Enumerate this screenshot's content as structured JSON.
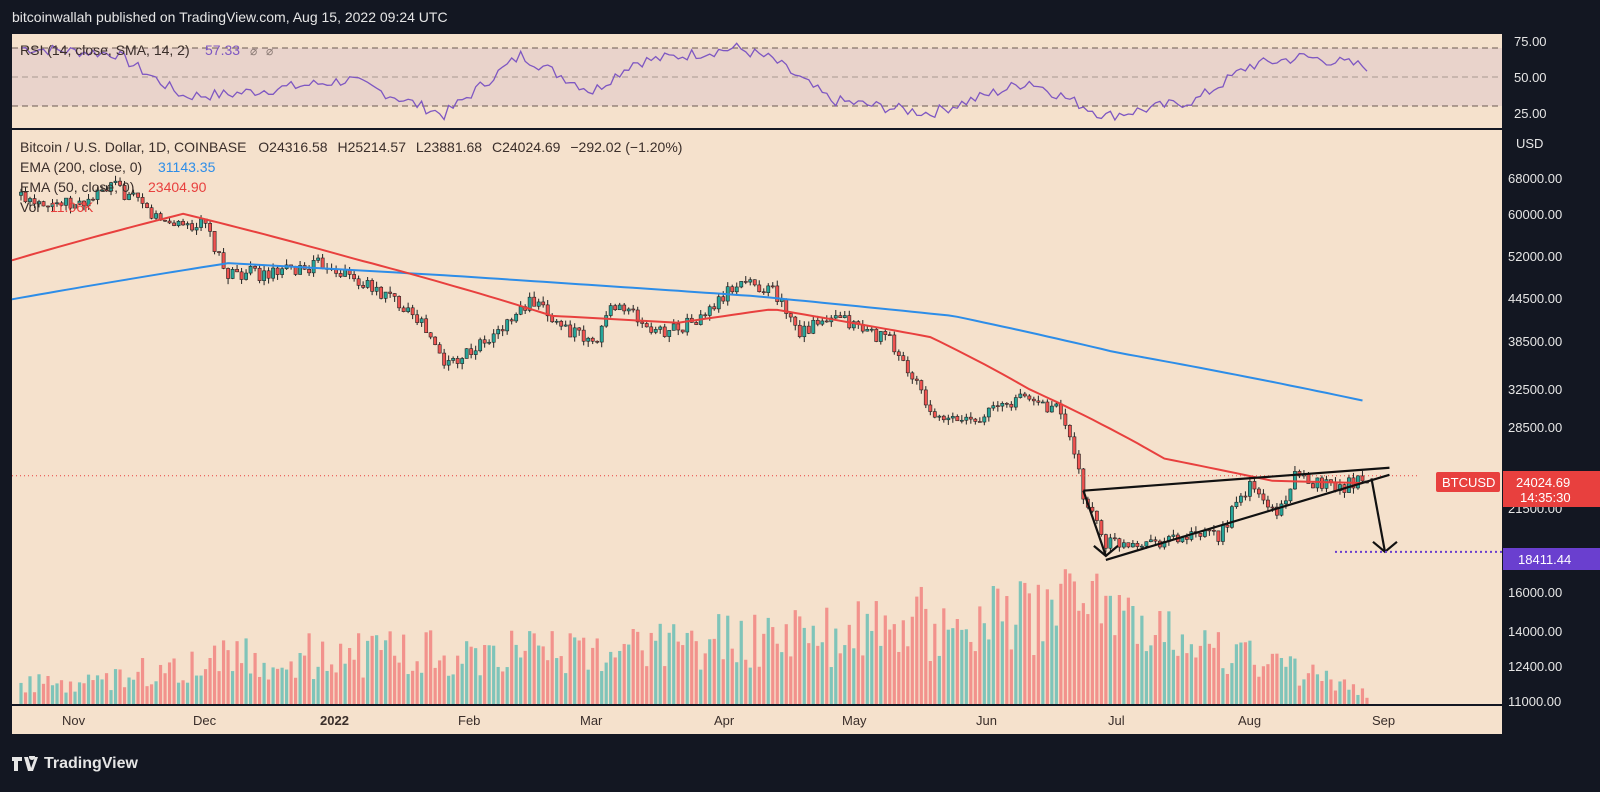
{
  "header": {
    "published": "bitcoinwallah published on TradingView.com, Aug 15, 2022 09:24 UTC"
  },
  "footer": {
    "brand": "TradingView"
  },
  "colors": {
    "background": "#f5e1cc",
    "frame": "#131722",
    "up": "#26a69a",
    "down": "#ef5350",
    "ema200": "#2d8de8",
    "ema50": "#e8403e",
    "rsi": "#7e57c2",
    "target": "#6a3fcf",
    "last_price": "#e8403e"
  },
  "rsi_panel": {
    "legend_name": "RSI (14, close, SMA, 14, 2)",
    "legend_value": "57.33",
    "legend_icons": [
      "eye-off-icon",
      "eye-off-icon"
    ],
    "y_ticks": [
      "75.00",
      "50.00",
      "25.00"
    ]
  },
  "price_panel": {
    "symbol_line": {
      "name": "Bitcoin / U.S. Dollar, 1D, COINBASE",
      "open": "O24316.58",
      "high": "H25214.57",
      "low": "L23881.68",
      "close": "C24024.69",
      "change": "−292.02 (−1.20%)"
    },
    "ema200_label": "EMA (200, close, 0)",
    "ema200_value": "31143.35",
    "ema50_label": "EMA (50, close, 0)",
    "ema50_value": "23404.90",
    "volume_label": "Vol",
    "volume_value": "11.06K",
    "currency": "USD",
    "y_ticks": [
      "68000.00",
      "60000.00",
      "52000.00",
      "44500.00",
      "38500.00",
      "32500.00",
      "28500.00",
      "21500.00",
      "16000.00",
      "14000.00",
      "12400.00",
      "11000.00"
    ],
    "symbol_tag": "BTCUSD",
    "last_price": "24024.69",
    "countdown": "14:35:30",
    "target_price": "18411.44"
  },
  "x_axis": {
    "labels": [
      "Nov",
      "Dec",
      "2022",
      "Feb",
      "Mar",
      "Apr",
      "May",
      "Jun",
      "Jul",
      "Aug",
      "Sep"
    ]
  },
  "chart_data": {
    "type": "candlestick",
    "symbol": "BTCUSD",
    "timeframe": "1D",
    "exchange": "COINBASE",
    "x_range": [
      "2021-10-18",
      "2022-09-14"
    ],
    "y_scale": "log",
    "ohlc_summary": {
      "open": 24316.58,
      "high": 25214.57,
      "low": 23881.68,
      "close": 24024.69,
      "change": -292.02,
      "change_pct": -1.2
    },
    "close_trend": [
      [
        "2021-10-20",
        64000
      ],
      [
        "2021-11-01",
        61500
      ],
      [
        "2021-11-10",
        66000
      ],
      [
        "2021-11-20",
        58500
      ],
      [
        "2021-11-30",
        57500
      ],
      [
        "2021-12-04",
        49000
      ],
      [
        "2021-12-15",
        48500
      ],
      [
        "2021-12-27",
        50500
      ],
      [
        "2022-01-05",
        46500
      ],
      [
        "2022-01-15",
        43000
      ],
      [
        "2022-01-22",
        35500
      ],
      [
        "2022-02-01",
        38500
      ],
      [
        "2022-02-10",
        44000
      ],
      [
        "2022-02-20",
        39500
      ],
      [
        "2022-02-24",
        38000
      ],
      [
        "2022-03-01",
        44000
      ],
      [
        "2022-03-10",
        39500
      ],
      [
        "2022-03-20",
        41500
      ],
      [
        "2022-03-29",
        47500
      ],
      [
        "2022-04-05",
        46000
      ],
      [
        "2022-04-11",
        40000
      ],
      [
        "2022-04-20",
        41500
      ],
      [
        "2022-05-01",
        38500
      ],
      [
        "2022-05-09",
        31000
      ],
      [
        "2022-05-12",
        29000
      ],
      [
        "2022-05-20",
        29500
      ],
      [
        "2022-05-31",
        31700
      ],
      [
        "2022-06-08",
        30200
      ],
      [
        "2022-06-13",
        22500
      ],
      [
        "2022-06-18",
        19000
      ],
      [
        "2022-06-30",
        19200
      ],
      [
        "2022-07-13",
        19500
      ],
      [
        "2022-07-20",
        23200
      ],
      [
        "2022-07-26",
        21000
      ],
      [
        "2022-07-30",
        23800
      ],
      [
        "2022-08-10",
        23200
      ],
      [
        "2022-08-15",
        24024.69
      ]
    ],
    "ema200": [
      [
        "2021-10-18",
        44500
      ],
      [
        "2021-12-05",
        50500
      ],
      [
        "2022-01-20",
        48500
      ],
      [
        "2022-04-01",
        45000
      ],
      [
        "2022-05-15",
        42000
      ],
      [
        "2022-06-20",
        37000
      ],
      [
        "2022-08-15",
        31143.35
      ]
    ],
    "ema50": [
      [
        "2021-10-18",
        51000
      ],
      [
        "2021-11-25",
        60000
      ],
      [
        "2022-01-01",
        51500
      ],
      [
        "2022-02-15",
        42000
      ],
      [
        "2022-03-15",
        41000
      ],
      [
        "2022-04-05",
        43000
      ],
      [
        "2022-05-10",
        39000
      ],
      [
        "2022-06-01",
        32500
      ],
      [
        "2022-07-01",
        25500
      ],
      [
        "2022-07-25",
        23600
      ],
      [
        "2022-08-15",
        23404.9
      ]
    ],
    "rsi": [
      [
        "2021-10-20",
        70
      ],
      [
        "2021-11-10",
        66
      ],
      [
        "2021-11-25",
        37
      ],
      [
        "2021-12-05",
        38
      ],
      [
        "2022-01-01",
        48
      ],
      [
        "2022-01-22",
        24
      ],
      [
        "2022-02-08",
        65
      ],
      [
        "2022-02-24",
        40
      ],
      [
        "2022-03-05",
        60
      ],
      [
        "2022-03-28",
        70
      ],
      [
        "2022-04-05",
        62
      ],
      [
        "2022-04-18",
        34
      ],
      [
        "2022-05-10",
        25
      ],
      [
        "2022-06-01",
        47
      ],
      [
        "2022-06-18",
        23
      ],
      [
        "2022-07-08",
        34
      ],
      [
        "2022-07-20",
        58
      ],
      [
        "2022-08-01",
        64
      ],
      [
        "2022-08-15",
        57.33
      ]
    ],
    "rsi_bands": [
      30,
      50,
      70
    ],
    "volume_trend": [
      [
        "2021-11-01",
        11800
      ],
      [
        "2021-12-04",
        13800
      ],
      [
        "2022-01-22",
        14200
      ],
      [
        "2022-02-28",
        14200
      ],
      [
        "2022-05-10",
        16500
      ],
      [
        "2022-06-13",
        17500
      ],
      [
        "2022-08-15",
        11060
      ]
    ],
    "rising_wedge": {
      "upper": [
        [
          "2022-06-13",
          22800
        ],
        [
          "2022-08-20",
          24700
        ]
      ],
      "lower": [
        [
          "2022-06-18",
          17900
        ],
        [
          "2022-08-20",
          24100
        ]
      ]
    },
    "breakdown_target": 18411.44
  }
}
